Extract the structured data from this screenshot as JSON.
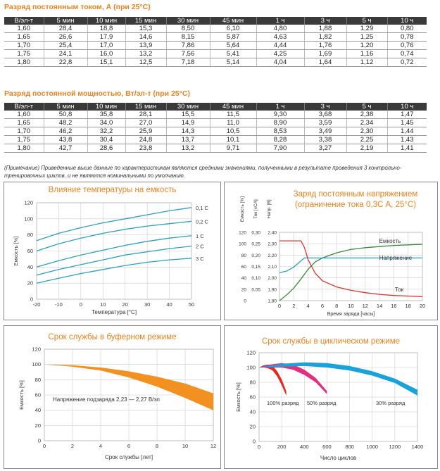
{
  "table1": {
    "title": "Разряд постоянным током, А (при 25°С)",
    "headers": [
      "В/эл-т",
      "5 мин",
      "10 мин",
      "15 мин",
      "30 мин",
      "45 мин",
      "1 ч",
      "3 ч",
      "5 ч",
      "10 ч"
    ],
    "rows": [
      [
        "1,60",
        "28,4",
        "18,8",
        "15,3",
        "8,50",
        "6,10",
        "4,80",
        "1,88",
        "1,29",
        "0,80"
      ],
      [
        "1,65",
        "26,6",
        "17,9",
        "14,6",
        "8,15",
        "5,87",
        "4,63",
        "1,82",
        "1,25",
        "0,78"
      ],
      [
        "1,70",
        "25,4",
        "17,0",
        "13,9",
        "7,86",
        "5,64",
        "4,44",
        "1,76",
        "1,20",
        "0,76"
      ],
      [
        "1,75",
        "24,1",
        "16,0",
        "13,2",
        "7,56",
        "5,41",
        "4,25",
        "1,69",
        "1,16",
        "0,74"
      ],
      [
        "1,80",
        "22,8",
        "15,1",
        "12,5",
        "7,18",
        "5,14",
        "4,04",
        "1,64",
        "1,12",
        "0,72"
      ]
    ]
  },
  "table2": {
    "title": "Разряд постоянной мощностью, Вт/эл-т (при 25°С)",
    "headers": [
      "В/эл-т",
      "5 мин",
      "10 мин",
      "15 мин",
      "30 мин",
      "45 мин",
      "1 ч",
      "3 ч",
      "5 ч",
      "10 ч"
    ],
    "rows": [
      [
        "1,60",
        "50,8",
        "35,8",
        "28,1",
        "15,5",
        "11,5",
        "9,30",
        "3,68",
        "2,38",
        "1,47"
      ],
      [
        "1,65",
        "48,2",
        "34,0",
        "27,0",
        "14,9",
        "11,0",
        "8,90",
        "3,59",
        "2,34",
        "1,45"
      ],
      [
        "1,70",
        "46,2",
        "32,2",
        "25,9",
        "14,3",
        "10,5",
        "8,53",
        "3,49",
        "2,30",
        "1,44"
      ],
      [
        "1,75",
        "43,8",
        "30,4",
        "24,8",
        "13,7",
        "10,1",
        "8,28",
        "3,38",
        "2,25",
        "1,43"
      ],
      [
        "1,80",
        "42,7",
        "28,6",
        "23,8",
        "13,2",
        "9,71",
        "7,90",
        "3,27",
        "2,19",
        "1,41"
      ]
    ]
  },
  "note": "(Примечание) Приведенные выше данные по характеристикам являются средними значениями, полученными в результате проведения 3 контрольно-тренировочных циклов, и не являются номинальными по умолчанию.",
  "chart_data": [
    {
      "type": "line",
      "title": "Влияние температуры на емкость",
      "xlabel": "Температура [°С]",
      "ylabel": "Емкость [%]",
      "xlim": [
        -20,
        50
      ],
      "ylim": [
        0,
        120
      ],
      "xticks": [
        -20,
        -10,
        0,
        10,
        20,
        30,
        40,
        50
      ],
      "yticks": [
        0,
        20,
        40,
        60,
        80,
        100,
        120
      ],
      "grid": true,
      "x": [
        -20,
        -10,
        0,
        10,
        20,
        30,
        40,
        50
      ],
      "series": [
        {
          "name": "0,1 С",
          "values": [
            73,
            82,
            89,
            95,
            100,
            105,
            110,
            114
          ],
          "color": "#2aa0c4"
        },
        {
          "name": "0,2 С",
          "values": [
            60,
            69,
            76,
            82,
            87,
            91,
            94,
            97
          ],
          "color": "#2aa0c4"
        },
        {
          "name": "1 С",
          "values": [
            40,
            48,
            55,
            61,
            67,
            72,
            76,
            79
          ],
          "color": "#2aa0c4"
        },
        {
          "name": "2 С",
          "values": [
            30,
            37,
            43,
            49,
            55,
            59,
            63,
            66
          ],
          "color": "#2aa0c4"
        },
        {
          "name": "3 С",
          "values": [
            20,
            26,
            32,
            37,
            42,
            46,
            49,
            51
          ],
          "color": "#2aa0c4"
        }
      ]
    },
    {
      "type": "line",
      "title": "Заряд постоянным напряжением (ограничение тока 0,3С А, 25°С)",
      "title_lines": [
        "Заряд постоянным напряжением",
        "(ограничение тока 0,3С А, 25°С)"
      ],
      "xlabel": "Время заряда [часы]",
      "axis_heads": {
        "capacity": "Емкость [%]",
        "current": "Ток [хСА]",
        "voltage": "Напр. [В]"
      },
      "xlim": [
        0,
        20
      ],
      "xticks": [
        0,
        2,
        4,
        6,
        8,
        10,
        12,
        14,
        16,
        18,
        20
      ],
      "capacity_ticks": [
        0,
        20,
        40,
        60,
        80,
        100,
        120
      ],
      "current_ticks": [
        0.05,
        0.1,
        0.15,
        0.2,
        0.25,
        0.3
      ],
      "voltage_ticks": [
        "1,80",
        "1,90",
        "2,00",
        "2,10",
        "2,20",
        "2,30",
        "2,40"
      ],
      "ylim_capacity": [
        0,
        120
      ],
      "grid": true,
      "series": [
        {
          "name": "Емкость",
          "x": [
            0,
            1,
            2,
            3,
            4,
            5,
            6,
            8,
            10,
            12,
            14,
            16,
            18,
            20
          ],
          "values": [
            0,
            10,
            22,
            38,
            55,
            68,
            75,
            84,
            90,
            93,
            95,
            97,
            98,
            99
          ],
          "color": "#3a8a3a"
        },
        {
          "name": "Напряжение",
          "x": [
            0,
            1,
            2,
            3,
            3.5,
            4,
            6,
            8,
            10,
            12,
            14,
            16,
            18,
            20
          ],
          "values": [
            49,
            52,
            59,
            70,
            75,
            75,
            75,
            75,
            75,
            75,
            75,
            75,
            75,
            75
          ],
          "color": "#2aa0c4"
        },
        {
          "name": "Ток",
          "x": [
            0,
            1,
            2,
            3,
            3.5,
            4,
            5,
            6,
            8,
            10,
            12,
            14,
            16,
            18,
            20
          ],
          "values": [
            105,
            105,
            105,
            105,
            93,
            72,
            48,
            35,
            24,
            18,
            14,
            11,
            9,
            8,
            7
          ],
          "color": "#d9362b"
        }
      ]
    },
    {
      "type": "area",
      "title": "Срок службы в буферном режиме",
      "xlabel": "Срок службы [лет]",
      "ylabel": "Емкость [%]",
      "xlim": [
        0,
        12
      ],
      "ylim": [
        0,
        120
      ],
      "xticks": [
        0,
        2,
        4,
        6,
        8,
        10,
        12
      ],
      "yticks": [
        0,
        20,
        40,
        60,
        80,
        100,
        120
      ],
      "grid": true,
      "annotation": "Напряжение подзаряда 2,23 — 2,27 В/эл",
      "color": "#f2911f",
      "x": [
        0,
        2,
        4,
        6,
        8,
        10,
        12
      ],
      "upper": [
        100,
        99,
        96,
        91,
        84,
        75,
        62
      ],
      "lower": [
        100,
        97,
        92,
        83,
        71,
        56,
        40
      ]
    },
    {
      "type": "area",
      "title": "Срок службы в циклическом режиме",
      "xlabel": "Число циклов",
      "ylabel": "Емкость [%]",
      "xlim": [
        0,
        1400
      ],
      "ylim": [
        0,
        120
      ],
      "xticks": [
        0,
        200,
        400,
        600,
        800,
        1000,
        1200,
        1400
      ],
      "yticks": [
        0,
        20,
        40,
        60,
        80,
        100,
        120
      ],
      "grid": true,
      "series": [
        {
          "name": "100% разряд",
          "color": "#e02b25",
          "x": [
            0,
            40,
            80,
            120,
            160,
            200,
            240
          ],
          "upper": [
            100,
            103,
            104,
            102,
            95,
            84,
            68
          ],
          "lower": [
            100,
            100,
            99,
            96,
            88,
            76,
            62
          ]
        },
        {
          "name": "50% разряд",
          "color": "#e0307f",
          "x": [
            0,
            100,
            200,
            300,
            400,
            500,
            600
          ],
          "upper": [
            100,
            104,
            106,
            104,
            97,
            86,
            68
          ],
          "lower": [
            100,
            100,
            100,
            97,
            90,
            80,
            64
          ]
        },
        {
          "name": "30% разряд",
          "color": "#19a3d8",
          "x": [
            0,
            200,
            400,
            600,
            800,
            1000,
            1200,
            1400
          ],
          "upper": [
            100,
            105,
            107,
            106,
            102,
            95,
            85,
            70
          ],
          "lower": [
            100,
            101,
            102,
            100,
            96,
            89,
            79,
            62
          ]
        }
      ]
    }
  ]
}
